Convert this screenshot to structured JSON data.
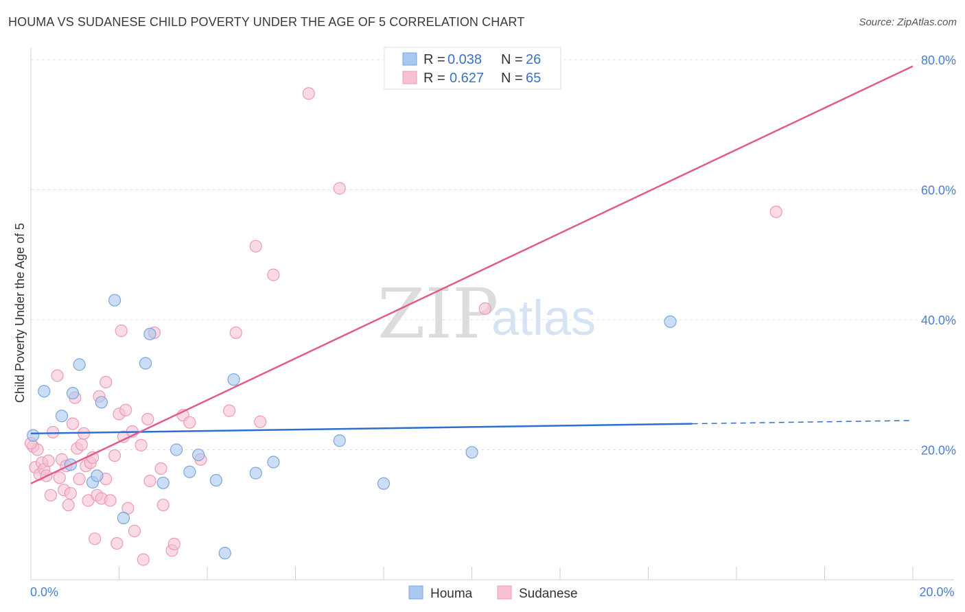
{
  "header": {
    "title": "HOUMA VS SUDANESE CHILD POVERTY UNDER THE AGE OF 5 CORRELATION CHART",
    "source": "Source: ZipAtlas.com"
  },
  "watermark": {
    "zip": "ZIP",
    "atlas": "atlas"
  },
  "chart_data": {
    "type": "scatter",
    "title": "HOUMA VS SUDANESE CHILD POVERTY UNDER THE AGE OF 5 CORRELATION CHART",
    "xlabel": "",
    "ylabel": "Child Poverty Under the Age of 5",
    "xlim": [
      0,
      20
    ],
    "ylim": [
      0,
      80
    ],
    "x_ticks": [
      0,
      20
    ],
    "x_tick_labels": [
      "0.0%",
      "20.0%"
    ],
    "y_ticks": [
      20,
      40,
      60,
      80
    ],
    "y_tick_labels": [
      "20.0%",
      "40.0%",
      "60.0%",
      "80.0%"
    ],
    "grid": true,
    "legend_position": "top-center",
    "series": [
      {
        "name": "Houma",
        "color": "#a9c8ef",
        "stroke": "#7aa6dc",
        "line_color": "#2a6fd0",
        "r": "0.038",
        "n": "26",
        "trend": {
          "x": [
            0,
            15
          ],
          "y": [
            22.5,
            24.0
          ],
          "dash_to": [
            20,
            24.5
          ]
        },
        "points": [
          [
            0.05,
            22.2
          ],
          [
            0.3,
            29.0
          ],
          [
            0.7,
            25.2
          ],
          [
            0.9,
            17.7
          ],
          [
            1.1,
            33.1
          ],
          [
            0.95,
            28.7
          ],
          [
            1.4,
            15.0
          ],
          [
            1.5,
            16.0
          ],
          [
            1.6,
            27.3
          ],
          [
            1.9,
            43.0
          ],
          [
            2.1,
            9.5
          ],
          [
            2.6,
            33.3
          ],
          [
            2.7,
            37.8
          ],
          [
            3.0,
            14.9
          ],
          [
            3.3,
            20.0
          ],
          [
            3.6,
            16.6
          ],
          [
            3.8,
            19.2
          ],
          [
            4.2,
            15.3
          ],
          [
            4.4,
            4.1
          ],
          [
            4.6,
            30.8
          ],
          [
            5.1,
            16.4
          ],
          [
            5.5,
            18.1
          ],
          [
            7.0,
            21.4
          ],
          [
            8.0,
            14.8
          ],
          [
            10.0,
            19.6
          ],
          [
            14.5,
            39.7
          ]
        ]
      },
      {
        "name": "Sudanese",
        "color": "#f7c1d2",
        "stroke": "#ec9ab6",
        "line_color": "#e05a8a",
        "r": "0.627",
        "n": "65",
        "trend": {
          "x": [
            0,
            20
          ],
          "y": [
            14.8,
            79.0
          ]
        },
        "points": [
          [
            0.05,
            20.5
          ],
          [
            0.1,
            17.3
          ],
          [
            0.15,
            20.0
          ],
          [
            0.2,
            16.2
          ],
          [
            0.25,
            18.0
          ],
          [
            0.3,
            17.0
          ],
          [
            0.35,
            16.0
          ],
          [
            0.4,
            18.3
          ],
          [
            0.45,
            13.0
          ],
          [
            0.5,
            22.7
          ],
          [
            0.6,
            31.4
          ],
          [
            0.65,
            15.7
          ],
          [
            0.7,
            18.5
          ],
          [
            0.75,
            13.8
          ],
          [
            0.8,
            17.5
          ],
          [
            0.85,
            11.5
          ],
          [
            0.9,
            13.3
          ],
          [
            0.95,
            24.0
          ],
          [
            1.0,
            28.0
          ],
          [
            1.05,
            20.2
          ],
          [
            1.1,
            15.5
          ],
          [
            1.15,
            20.8
          ],
          [
            1.2,
            22.5
          ],
          [
            1.25,
            17.5
          ],
          [
            1.3,
            12.2
          ],
          [
            1.35,
            18.0
          ],
          [
            1.4,
            18.8
          ],
          [
            1.45,
            6.3
          ],
          [
            1.5,
            13.0
          ],
          [
            1.55,
            28.2
          ],
          [
            1.6,
            12.5
          ],
          [
            1.7,
            15.5
          ],
          [
            1.7,
            30.4
          ],
          [
            1.8,
            12.2
          ],
          [
            1.9,
            19.1
          ],
          [
            1.95,
            5.6
          ],
          [
            2.0,
            25.5
          ],
          [
            2.05,
            38.3
          ],
          [
            2.1,
            22.0
          ],
          [
            2.15,
            26.1
          ],
          [
            2.2,
            11.0
          ],
          [
            2.3,
            22.8
          ],
          [
            2.35,
            7.5
          ],
          [
            2.5,
            20.7
          ],
          [
            2.55,
            3.1
          ],
          [
            2.65,
            24.7
          ],
          [
            2.7,
            15.2
          ],
          [
            2.8,
            38.0
          ],
          [
            2.95,
            17.1
          ],
          [
            3.0,
            11.5
          ],
          [
            3.2,
            4.5
          ],
          [
            3.25,
            5.5
          ],
          [
            3.45,
            25.3
          ],
          [
            3.6,
            24.2
          ],
          [
            3.85,
            18.5
          ],
          [
            4.5,
            26.0
          ],
          [
            4.65,
            38.0
          ],
          [
            5.1,
            51.3
          ],
          [
            5.2,
            24.3
          ],
          [
            5.5,
            46.9
          ],
          [
            6.3,
            74.8
          ],
          [
            7.0,
            60.2
          ],
          [
            10.3,
            41.7
          ],
          [
            16.9,
            56.6
          ],
          [
            0.0,
            21.0
          ]
        ]
      }
    ]
  },
  "legend": {
    "houma": {
      "r_label": "R = ",
      "r_value": "0.038",
      "n_label": "N = ",
      "n_value": "26"
    },
    "sudanese": {
      "r_label": "R = ",
      "r_value": "0.627",
      "n_label": "N = ",
      "n_value": "65"
    }
  },
  "bottom_legend": {
    "houma": "Houma",
    "sudanese": "Sudanese"
  }
}
